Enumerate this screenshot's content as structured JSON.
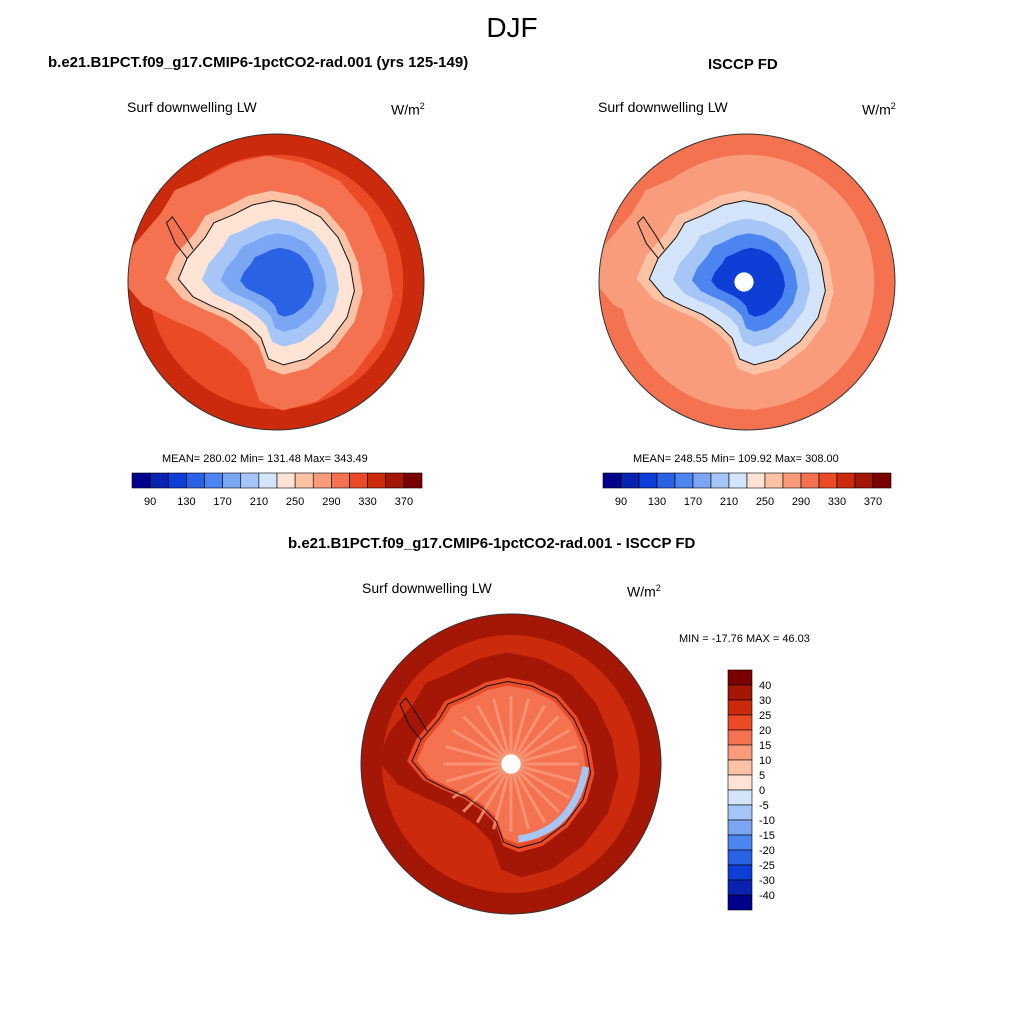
{
  "figure": {
    "title": "DJF"
  },
  "panels": [
    {
      "title": "b.e21.B1PCT.f09_g17.CMIP6-1pctCO2-rad.001 (yrs 125-149)",
      "variable": "Surf downwelling LW",
      "units": "W/m",
      "units_exp": "2",
      "stats": "MEAN= 280.02  Min= 131.48  Max= 343.49"
    },
    {
      "title": "ISCCP FD",
      "variable": "Surf downwelling LW",
      "units": "W/m",
      "units_exp": "2",
      "stats": "MEAN= 248.55  Min= 109.92  Max= 308.00"
    },
    {
      "title": "b.e21.B1PCT.f09_g17.CMIP6-1pctCO2-rad.001 - ISCCP FD",
      "variable": "Surf downwelling LW",
      "units": "W/m",
      "units_exp": "2",
      "stats": "MIN = -17.76 MAX =  46.03"
    }
  ],
  "chart_data": [
    {
      "type": "heatmap",
      "projection": "south polar stereographic",
      "title": "b.e21.B1PCT.f09_g17.CMIP6-1pctCO2-rad.001 (yrs 125-149)",
      "subtitle": "Surf downwelling LW",
      "units": "W/m2",
      "mean": 280.02,
      "min": 131.48,
      "max": 343.49,
      "colorbar": {
        "orientation": "horizontal",
        "levels": [
          90,
          110,
          130,
          150,
          170,
          190,
          210,
          230,
          250,
          270,
          290,
          310,
          330,
          350,
          370
        ],
        "tick_labels": [
          "90",
          "130",
          "170",
          "210",
          "250",
          "290",
          "330",
          "370"
        ],
        "colors": [
          "#00008c",
          "#0a22b0",
          "#0e3ed6",
          "#2a62e6",
          "#4c84f0",
          "#7aa6f4",
          "#a6c6f8",
          "#d4e4fa",
          "#ffe4d6",
          "#fcc2a6",
          "#f89c7c",
          "#f47250",
          "#ea4a26",
          "#cc2a0c",
          "#a41606",
          "#7a0000"
        ]
      },
      "field_zones": [
        {
          "region": "outer ocean",
          "value": 330
        },
        {
          "region": "mid ocean",
          "value": 315
        },
        {
          "region": "sea ice edge",
          "value": 300
        },
        {
          "region": "coast",
          "value": 265
        },
        {
          "region": "ice shelf",
          "value": 235
        },
        {
          "region": "coastal plateau",
          "value": 205
        },
        {
          "region": "inner plateau",
          "value": 175
        },
        {
          "region": "east antarctic interior",
          "value": 145
        }
      ]
    },
    {
      "type": "heatmap",
      "projection": "south polar stereographic",
      "title": "ISCCP FD",
      "subtitle": "Surf downwelling LW",
      "units": "W/m2",
      "mean": 248.55,
      "min": 109.92,
      "max": 308.0,
      "colorbar": {
        "orientation": "horizontal",
        "levels": [
          90,
          110,
          130,
          150,
          170,
          190,
          210,
          230,
          250,
          270,
          290,
          310,
          330,
          350,
          370
        ],
        "tick_labels": [
          "90",
          "130",
          "170",
          "210",
          "250",
          "290",
          "330",
          "370"
        ],
        "colors": [
          "#00008c",
          "#0a22b0",
          "#0e3ed6",
          "#2a62e6",
          "#4c84f0",
          "#7aa6f4",
          "#a6c6f8",
          "#d4e4fa",
          "#ffe4d6",
          "#fcc2a6",
          "#f89c7c",
          "#f47250",
          "#ea4a26",
          "#cc2a0c",
          "#a41606",
          "#7a0000"
        ]
      },
      "field_zones": [
        {
          "region": "outer ocean",
          "value": 300
        },
        {
          "region": "mid ocean",
          "value": 285
        },
        {
          "region": "sea ice edge",
          "value": 270
        },
        {
          "region": "coast",
          "value": 250
        },
        {
          "region": "ice shelf",
          "value": 225
        },
        {
          "region": "coastal plateau",
          "value": 195
        },
        {
          "region": "inner plateau",
          "value": 165
        },
        {
          "region": "east antarctic interior",
          "value": 125
        }
      ]
    },
    {
      "type": "heatmap",
      "projection": "south polar stereographic",
      "title": "b.e21.B1PCT.f09_g17.CMIP6-1pctCO2-rad.001 - ISCCP FD",
      "subtitle": "Surf downwelling LW",
      "units": "W/m2",
      "min": -17.76,
      "max": 46.03,
      "colorbar": {
        "orientation": "vertical",
        "levels": [
          -40,
          -30,
          -25,
          -20,
          -15,
          -10,
          -5,
          0,
          5,
          10,
          15,
          20,
          25,
          30,
          40
        ],
        "tick_labels": [
          "40",
          "30",
          "25",
          "20",
          "15",
          "10",
          "5",
          "0",
          "-5",
          "-10",
          "-15",
          "-20",
          "-25",
          "-30",
          "-40"
        ],
        "colors": [
          "#00008c",
          "#0a22b0",
          "#0e3ed6",
          "#2a62e6",
          "#4c84f0",
          "#7aa6f4",
          "#a6c6f8",
          "#d4e4fa",
          "#ffe4d6",
          "#fcc2a6",
          "#f89c7c",
          "#f47250",
          "#ea4a26",
          "#cc2a0c",
          "#a41606",
          "#7a0000"
        ]
      },
      "field_zones": [
        {
          "region": "outer ocean",
          "value": 32
        },
        {
          "region": "mid ocean",
          "value": 28
        },
        {
          "region": "sea ice edge",
          "value": 30
        },
        {
          "region": "coast",
          "value": 22
        },
        {
          "region": "antarctic interior",
          "value": 18
        },
        {
          "region": "plateau streaks",
          "value": 12
        },
        {
          "region": "east antarctic coast",
          "value": -8
        }
      ]
    }
  ]
}
